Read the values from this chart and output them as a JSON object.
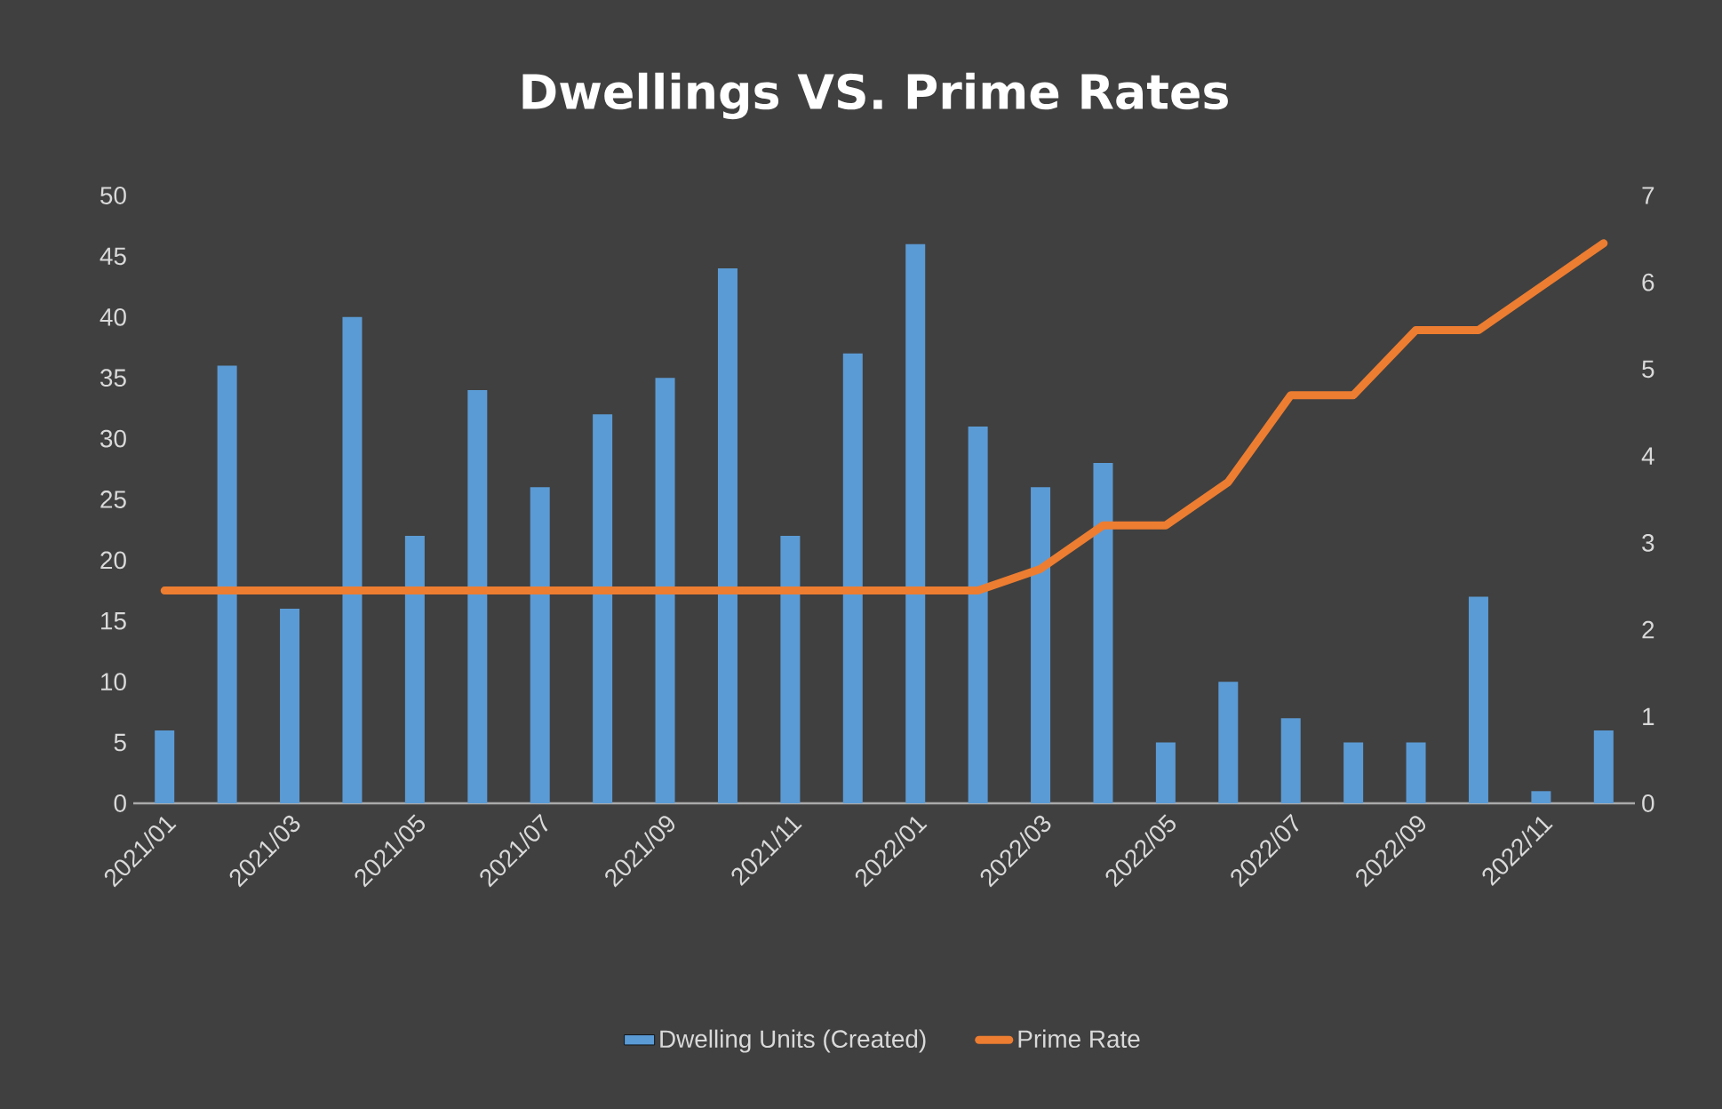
{
  "chart_data": {
    "type": "bar",
    "title": "Dwellings VS. Prime Rates",
    "categories": [
      "2021/01",
      null,
      "2021/03",
      null,
      "2021/05",
      null,
      "2021/07",
      null,
      "2021/09",
      null,
      "2021/11",
      null,
      "2022/01",
      null,
      "2022/03",
      null,
      "2022/05",
      null,
      "2022/07",
      null,
      "2022/09",
      null,
      "2022/11",
      null
    ],
    "series": [
      {
        "name": "Dwelling Units (Created)",
        "color": "#5b9bd5",
        "values": [
          6,
          36,
          16,
          40,
          22,
          34,
          26,
          32,
          35,
          44,
          22,
          37,
          46,
          31,
          26,
          28,
          5,
          10,
          7,
          5,
          5,
          17,
          1,
          6
        ]
      },
      {
        "name": "Prime Rate",
        "type": "line",
        "axis": "y2",
        "color": "#ed7d31",
        "values": [
          2.45,
          2.45,
          2.45,
          2.45,
          2.45,
          2.45,
          2.45,
          2.45,
          2.45,
          2.45,
          2.45,
          2.45,
          2.45,
          2.45,
          2.7,
          3.2,
          3.2,
          3.7,
          4.7,
          4.7,
          5.45,
          5.45,
          5.95,
          6.45
        ]
      }
    ],
    "ylim": [
      0,
      50
    ],
    "yticks": [
      0,
      5,
      10,
      15,
      20,
      25,
      30,
      35,
      40,
      45,
      50
    ],
    "y2lim": [
      0,
      7
    ],
    "y2ticks": [
      0,
      1,
      2,
      3,
      4,
      5,
      6,
      7
    ],
    "grid": false,
    "legend": "bottom"
  }
}
